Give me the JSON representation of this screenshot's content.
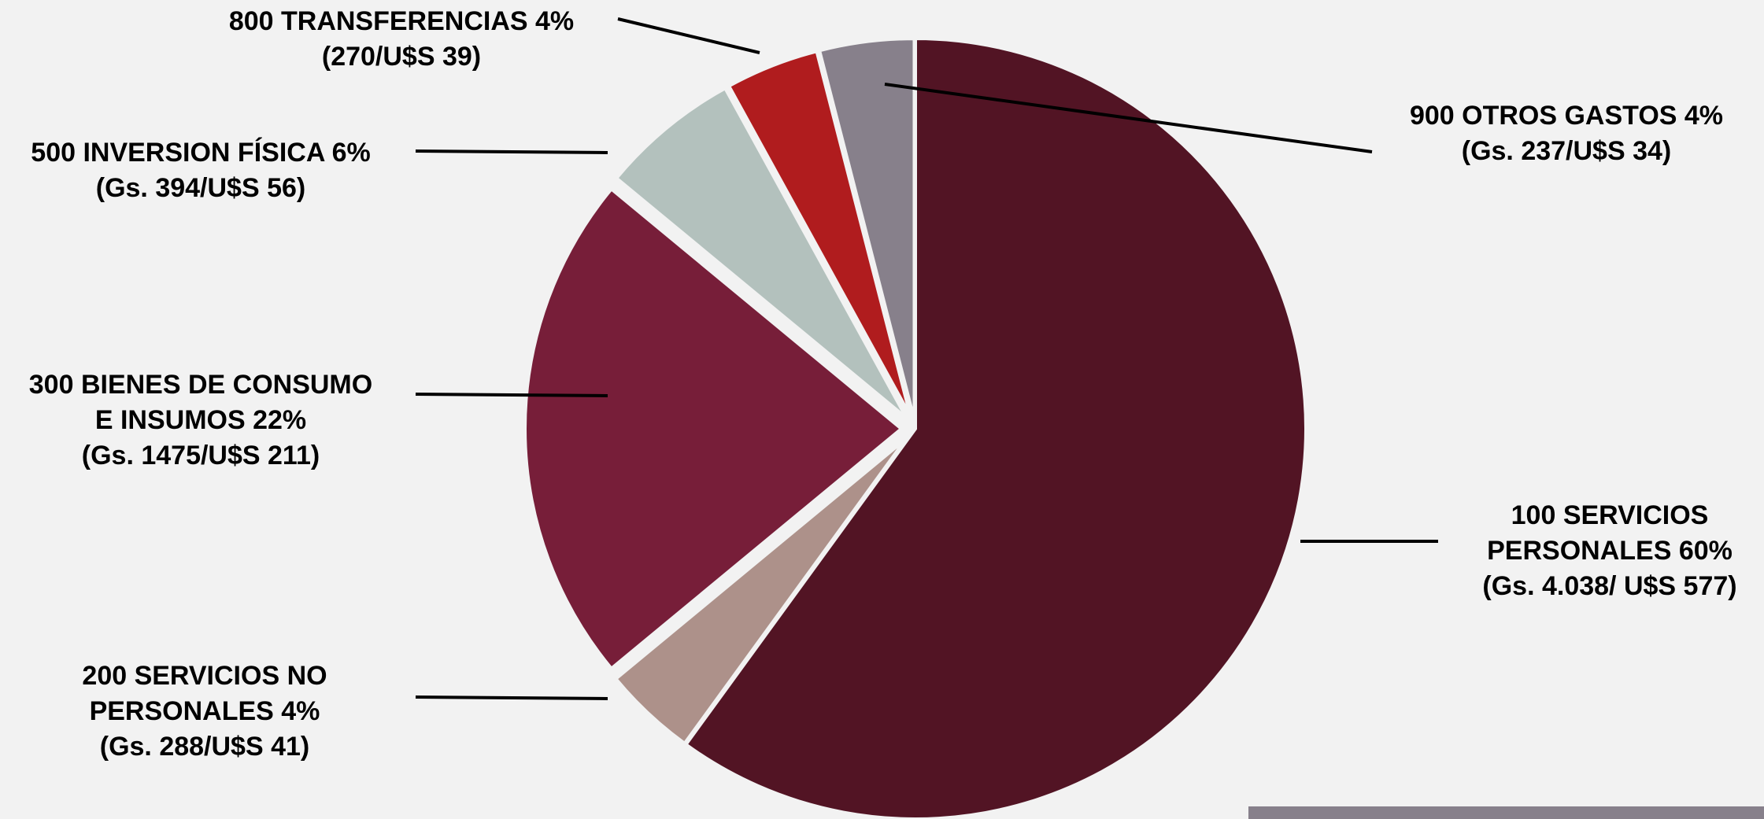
{
  "chart_data": {
    "type": "pie",
    "slices": [
      {
        "code": "100",
        "name": "SERVICIOS PERSONALES",
        "percent": 60,
        "gs": "4.038",
        "usd": 577,
        "color": "#521424",
        "label_lines": [
          "100 SERVICIOS",
          "PERSONALES 60%",
          "(Gs. 4.038/ U$S 577)"
        ]
      },
      {
        "code": "200",
        "name": "SERVICIOS NO PERSONALES",
        "percent": 4,
        "gs": "288",
        "usd": 41,
        "color": "#ad918a",
        "label_lines": [
          "200 SERVICIOS NO",
          "PERSONALES 4%",
          "(Gs. 288/U$S 41)"
        ]
      },
      {
        "code": "300",
        "name": "BIENES DE CONSUMO E INSUMOS",
        "percent": 22,
        "gs": "1475",
        "usd": 211,
        "color": "#771e39",
        "label_lines": [
          "300 BIENES DE CONSUMO",
          "E INSUMOS 22%",
          "(Gs. 1475/U$S 211)"
        ]
      },
      {
        "code": "500",
        "name": "INVERSION FÍSICA",
        "percent": 6,
        "gs": "394",
        "usd": 56,
        "color": "#b3c1bd",
        "label_lines": [
          "500 INVERSION FÍSICA 6%",
          "(Gs. 394/U$S 56)"
        ]
      },
      {
        "code": "800",
        "name": "TRANSFERENCIAS",
        "percent": 4,
        "gs": "270",
        "usd": 39,
        "color": "#b01c1e",
        "label_lines": [
          "800 TRANSFERENCIAS 4%",
          "(270/U$S 39)"
        ]
      },
      {
        "code": "900",
        "name": "OTROS GASTOS",
        "percent": 4,
        "gs": "237",
        "usd": 34,
        "color": "#87808b",
        "label_lines": [
          "900 OTROS GASTOS 4%",
          "(Gs. 237/U$S 34)"
        ]
      }
    ],
    "legend": "none",
    "colors": {
      "background": "#f2f2f2",
      "footer_bar": "#87808b"
    }
  }
}
